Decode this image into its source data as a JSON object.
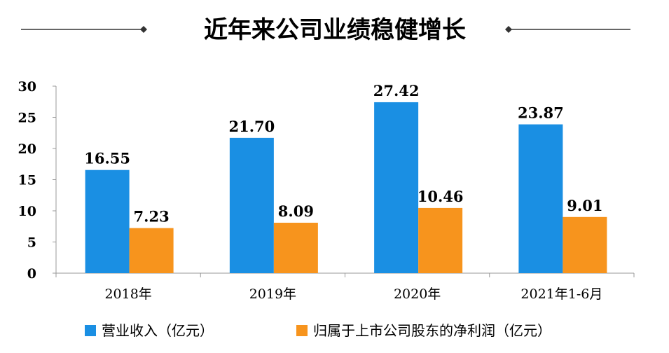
{
  "chart_data": {
    "type": "bar",
    "title": "近年来公司业绩稳健增长",
    "categories": [
      "2018年",
      "2019年",
      "2020年",
      "2021年1-6月"
    ],
    "series": [
      {
        "name": "营业收入（亿元）",
        "values": [
          16.55,
          21.7,
          27.42,
          23.87
        ],
        "labels": [
          "16.55",
          "21.70",
          "27.42",
          "23.87"
        ],
        "color": "#1a8fe3"
      },
      {
        "name": "归属于上市公司股东的净利润（亿元）",
        "values": [
          7.23,
          8.09,
          10.46,
          9.01
        ],
        "labels": [
          "7.23",
          "8.09",
          "10.46",
          "9.01"
        ],
        "color": "#f7941d"
      }
    ],
    "yticks": [
      "0",
      "5",
      "10",
      "15",
      "20",
      "25",
      "30"
    ],
    "ylim": [
      0,
      30
    ],
    "grid": false,
    "legend": "bottom"
  }
}
